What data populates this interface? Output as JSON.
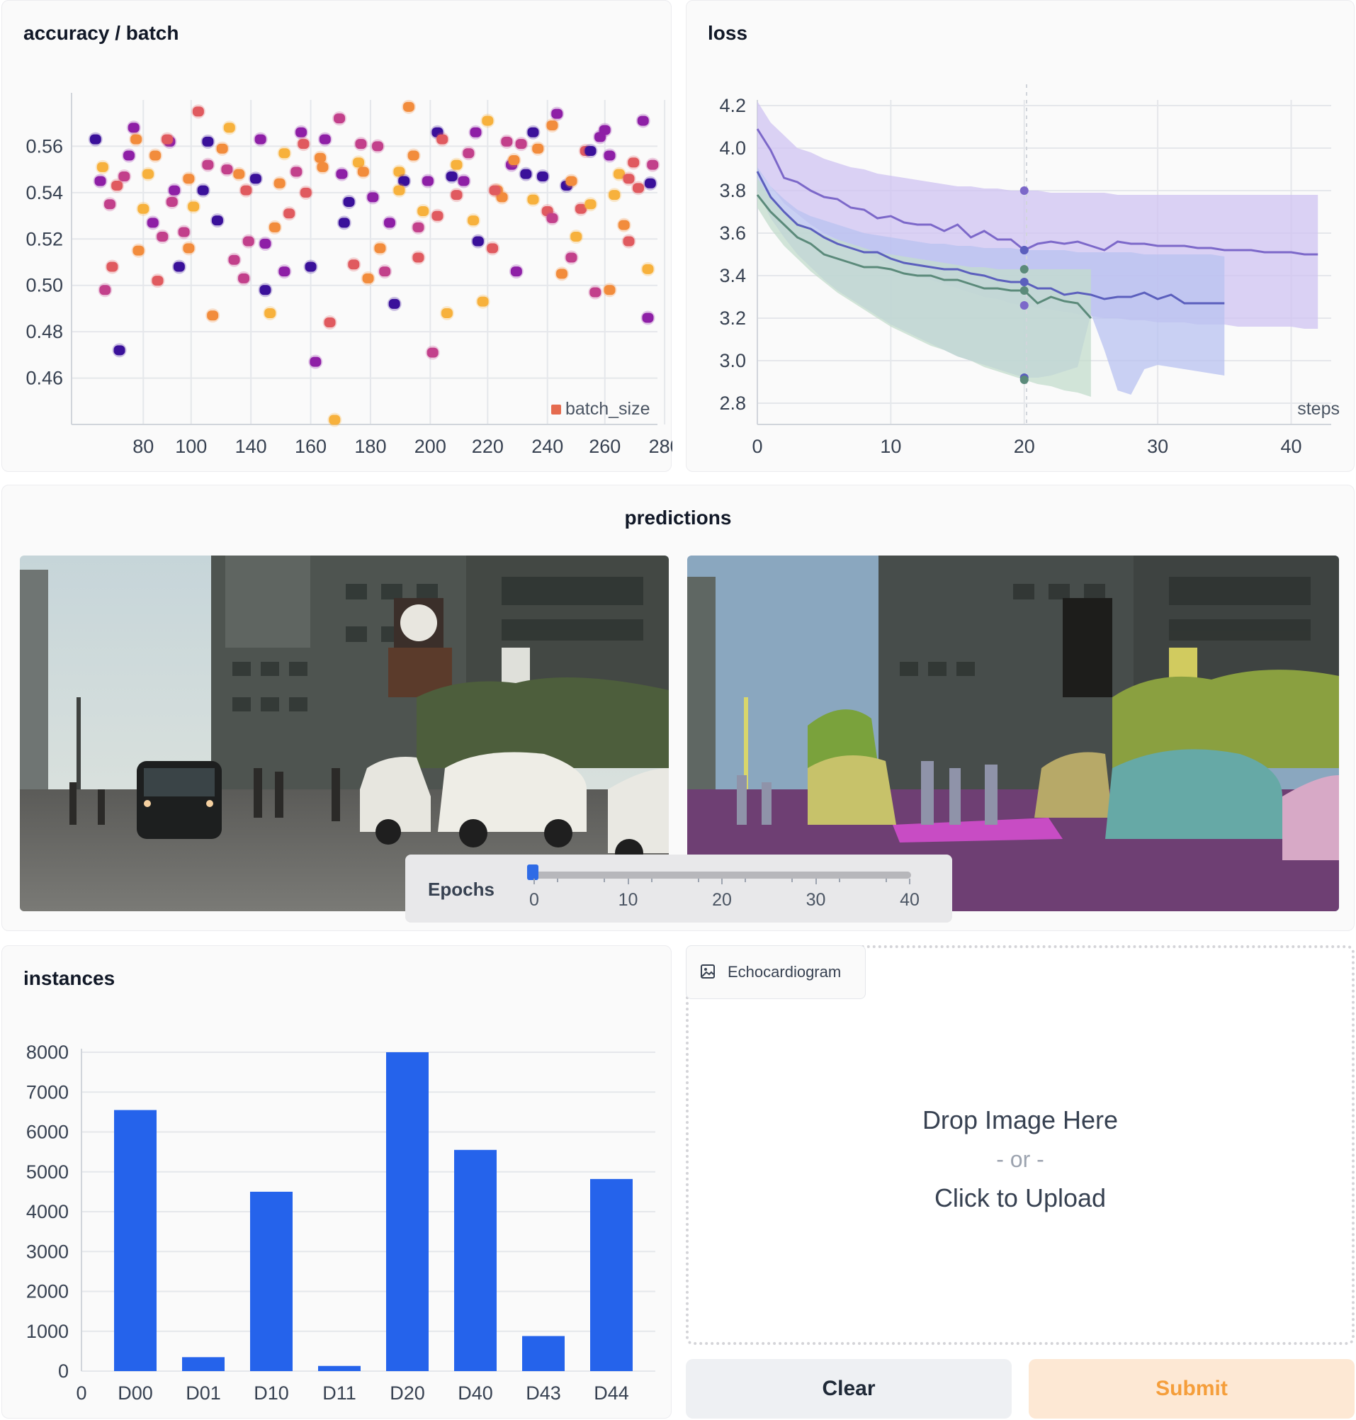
{
  "accuracy_panel": {
    "title": "accuracy / batch",
    "legend_label": "batch_size"
  },
  "loss_panel": {
    "title": "loss",
    "x_label": "steps"
  },
  "predictions_panel": {
    "title": "predictions"
  },
  "slider": {
    "label": "Epochs",
    "ticks": [
      "0",
      "10",
      "20",
      "30",
      "40"
    ],
    "value": 0
  },
  "instances_panel": {
    "title": "instances"
  },
  "upload": {
    "label": "Echocardiogram",
    "drop_text": "Drop Image Here",
    "or_text": "- or -",
    "click_text": "Click to Upload"
  },
  "buttons": {
    "clear_label": "Clear",
    "submit_label": "Submit"
  },
  "chart_data": [
    {
      "type": "scatter",
      "title": "accuracy / batch",
      "legend": [
        "batch_size"
      ],
      "x_ticks": [
        "80",
        "100",
        "140",
        "160",
        "180",
        "200",
        "220",
        "240",
        "260",
        "280"
      ],
      "y_ticks": [
        "0.56",
        "0.54",
        "0.52",
        "0.50",
        "0.48",
        "0.46"
      ],
      "ylim": [
        0.44,
        0.58
      ],
      "grid": true,
      "legend_position": "bottom-right",
      "palette": [
        "#f7b13c",
        "#f28c3c",
        "#e05a5f",
        "#c2408b",
        "#8e1fa6",
        "#3a109a"
      ],
      "points": [
        [
          60,
          0.563
        ],
        [
          63,
          0.551
        ],
        [
          67,
          0.508
        ],
        [
          72,
          0.547
        ],
        [
          76,
          0.568
        ],
        [
          80,
          0.533
        ],
        [
          85,
          0.556
        ],
        [
          88,
          0.521
        ],
        [
          91,
          0.562
        ],
        [
          95,
          0.508
        ],
        [
          99,
          0.546
        ],
        [
          103,
          0.575
        ],
        [
          107,
          0.552
        ],
        [
          111,
          0.528
        ],
        [
          116,
          0.568
        ],
        [
          120,
          0.548
        ],
        [
          124,
          0.519
        ],
        [
          129,
          0.563
        ],
        [
          133,
          0.488
        ],
        [
          137,
          0.544
        ],
        [
          141,
          0.531
        ],
        [
          146,
          0.566
        ],
        [
          150,
          0.508
        ],
        [
          154,
          0.555
        ],
        [
          158,
          0.484
        ],
        [
          162,
          0.572
        ],
        [
          166,
          0.536
        ],
        [
          170,
          0.553
        ],
        [
          174,
          0.503
        ],
        [
          178,
          0.56
        ],
        [
          183,
          0.527
        ],
        [
          187,
          0.549
        ],
        [
          191,
          0.577
        ],
        [
          195,
          0.512
        ],
        [
          199,
          0.545
        ],
        [
          203,
          0.566
        ],
        [
          207,
          0.488
        ],
        [
          211,
          0.539
        ],
        [
          216,
          0.557
        ],
        [
          220,
          0.519
        ],
        [
          224,
          0.571
        ],
        [
          228,
          0.541
        ],
        [
          232,
          0.562
        ],
        [
          236,
          0.506
        ],
        [
          240,
          0.548
        ],
        [
          245,
          0.559
        ],
        [
          249,
          0.532
        ],
        [
          253,
          0.574
        ],
        [
          257,
          0.543
        ],
        [
          261,
          0.521
        ],
        [
          265,
          0.558
        ],
        [
          269,
          0.497
        ],
        [
          273,
          0.567
        ],
        [
          277,
          0.539
        ],
        [
          281,
          0.526
        ],
        [
          285,
          0.553
        ],
        [
          289,
          0.571
        ],
        [
          292,
          0.544
        ],
        [
          64,
          0.498
        ],
        [
          70,
          0.472
        ],
        [
          78,
          0.515
        ],
        [
          86,
          0.502
        ],
        [
          93,
          0.541
        ],
        [
          101,
          0.534
        ],
        [
          109,
          0.487
        ],
        [
          118,
          0.511
        ],
        [
          127,
          0.546
        ],
        [
          135,
          0.525
        ],
        [
          144,
          0.549
        ],
        [
          152,
          0.467
        ],
        [
          160,
          0.442
        ],
        [
          168,
          0.509
        ],
        [
          176,
          0.538
        ],
        [
          185,
          0.492
        ],
        [
          193,
          0.556
        ],
        [
          201,
          0.471
        ],
        [
          209,
          0.547
        ],
        [
          218,
          0.528
        ],
        [
          226,
          0.516
        ],
        [
          234,
          0.552
        ],
        [
          243,
          0.537
        ],
        [
          251,
          0.569
        ],
        [
          259,
          0.512
        ],
        [
          267,
          0.558
        ],
        [
          275,
          0.498
        ],
        [
          283,
          0.519
        ],
        [
          291,
          0.486
        ],
        [
          66,
          0.535
        ],
        [
          74,
          0.556
        ],
        [
          82,
          0.548
        ],
        [
          90,
          0.563
        ],
        [
          97,
          0.523
        ],
        [
          105,
          0.541
        ],
        [
          113,
          0.559
        ],
        [
          122,
          0.503
        ],
        [
          131,
          0.518
        ],
        [
          139,
          0.557
        ],
        [
          148,
          0.54
        ],
        [
          156,
          0.563
        ],
        [
          164,
          0.527
        ],
        [
          172,
          0.549
        ],
        [
          181,
          0.506
        ],
        [
          189,
          0.545
        ],
        [
          197,
          0.532
        ],
        [
          205,
          0.563
        ],
        [
          214,
          0.545
        ],
        [
          222,
          0.493
        ],
        [
          230,
          0.538
        ],
        [
          238,
          0.561
        ],
        [
          247,
          0.547
        ],
        [
          255,
          0.505
        ],
        [
          263,
          0.533
        ],
        [
          271,
          0.564
        ],
        [
          279,
          0.548
        ],
        [
          287,
          0.542
        ],
        [
          293,
          0.552
        ],
        [
          69,
          0.543
        ],
        [
          84,
          0.527
        ],
        [
          99,
          0.516
        ],
        [
          115,
          0.55
        ],
        [
          131,
          0.498
        ],
        [
          147,
          0.561
        ],
        [
          163,
          0.548
        ],
        [
          179,
          0.516
        ],
        [
          195,
          0.525
        ],
        [
          211,
          0.552
        ],
        [
          227,
          0.541
        ],
        [
          243,
          0.566
        ],
        [
          259,
          0.545
        ],
        [
          275,
          0.556
        ],
        [
          291,
          0.507
        ],
        [
          62,
          0.545
        ],
        [
          77,
          0.563
        ],
        [
          92,
          0.536
        ],
        [
          107,
          0.562
        ],
        [
          123,
          0.541
        ],
        [
          139,
          0.506
        ],
        [
          155,
          0.551
        ],
        [
          171,
          0.561
        ],
        [
          187,
          0.541
        ],
        [
          203,
          0.53
        ],
        [
          219,
          0.566
        ],
        [
          235,
          0.554
        ],
        [
          251,
          0.529
        ],
        [
          267,
          0.535
        ],
        [
          283,
          0.546
        ]
      ]
    },
    {
      "type": "line",
      "title": "loss",
      "xlabel": "steps",
      "x_ticks": [
        "0",
        "10",
        "20",
        "30",
        "40"
      ],
      "y_ticks": [
        "4.2",
        "4.0",
        "3.8",
        "3.6",
        "3.4",
        "3.2",
        "3.0",
        "2.8"
      ],
      "xlim": [
        0,
        43
      ],
      "ylim": [
        2.7,
        4.3
      ],
      "grid": true,
      "series": [
        {
          "color": "#7c68c9",
          "band": "#cfc3f2",
          "x": [
            0,
            1,
            2,
            3,
            4,
            5,
            6,
            7,
            8,
            9,
            10,
            11,
            12,
            13,
            14,
            15,
            16,
            17,
            18,
            19,
            20,
            21,
            22,
            23,
            24,
            25,
            26,
            27,
            28,
            29,
            30,
            31,
            32,
            33,
            34,
            35,
            36,
            37,
            38,
            39,
            40,
            41,
            42
          ],
          "y": [
            4.09,
            3.99,
            3.86,
            3.84,
            3.8,
            3.77,
            3.76,
            3.72,
            3.71,
            3.67,
            3.68,
            3.65,
            3.64,
            3.64,
            3.61,
            3.64,
            3.58,
            3.61,
            3.57,
            3.57,
            3.52,
            3.55,
            3.56,
            3.55,
            3.56,
            3.54,
            3.52,
            3.56,
            3.55,
            3.55,
            3.54,
            3.54,
            3.54,
            3.53,
            3.53,
            3.52,
            3.52,
            3.52,
            3.51,
            3.51,
            3.51,
            3.5,
            3.5
          ],
          "upper": [
            4.22,
            4.12,
            4.06,
            4.0,
            3.98,
            3.95,
            3.93,
            3.91,
            3.9,
            3.88,
            3.87,
            3.86,
            3.85,
            3.84,
            3.83,
            3.82,
            3.82,
            3.81,
            3.81,
            3.8,
            3.8,
            3.8,
            3.79,
            3.79,
            3.79,
            3.79,
            3.79,
            3.78,
            3.78,
            3.78,
            3.78,
            3.78,
            3.78,
            3.78,
            3.78,
            3.78,
            3.78,
            3.78,
            3.78,
            3.78,
            3.78,
            3.78,
            3.78
          ],
          "lower": [
            3.9,
            3.82,
            3.74,
            3.69,
            3.64,
            3.6,
            3.57,
            3.54,
            3.51,
            3.48,
            3.45,
            3.42,
            3.4,
            3.38,
            3.36,
            3.34,
            3.32,
            3.3,
            3.29,
            3.27,
            3.26,
            3.25,
            3.24,
            3.23,
            3.22,
            3.21,
            3.2,
            3.2,
            3.19,
            3.19,
            3.18,
            3.18,
            3.18,
            3.17,
            3.17,
            3.17,
            3.16,
            3.16,
            3.16,
            3.16,
            3.16,
            3.15,
            3.15
          ]
        },
        {
          "color": "#5b5fbd",
          "band": "#b8c2f0",
          "x": [
            0,
            1,
            2,
            3,
            4,
            5,
            6,
            7,
            8,
            9,
            10,
            11,
            12,
            13,
            14,
            15,
            16,
            17,
            18,
            19,
            20,
            21,
            22,
            23,
            24,
            25,
            26,
            27,
            28,
            29,
            30,
            31,
            32,
            33,
            34,
            35
          ],
          "y": [
            3.89,
            3.77,
            3.7,
            3.64,
            3.62,
            3.58,
            3.55,
            3.53,
            3.51,
            3.51,
            3.48,
            3.46,
            3.45,
            3.44,
            3.43,
            3.43,
            3.41,
            3.4,
            3.38,
            3.37,
            3.37,
            3.34,
            3.34,
            3.31,
            3.32,
            3.31,
            3.29,
            3.3,
            3.3,
            3.32,
            3.29,
            3.31,
            3.27,
            3.27,
            3.27,
            3.27
          ],
          "upper": [
            3.91,
            3.82,
            3.76,
            3.71,
            3.68,
            3.66,
            3.64,
            3.62,
            3.6,
            3.59,
            3.58,
            3.57,
            3.56,
            3.55,
            3.55,
            3.54,
            3.54,
            3.53,
            3.53,
            3.53,
            3.52,
            3.52,
            3.52,
            3.52,
            3.51,
            3.51,
            3.51,
            3.51,
            3.51,
            3.5,
            3.5,
            3.5,
            3.5,
            3.5,
            3.5,
            3.49
          ],
          "lower": [
            3.8,
            3.67,
            3.58,
            3.5,
            3.44,
            3.38,
            3.33,
            3.29,
            3.25,
            3.21,
            3.17,
            3.14,
            3.11,
            3.08,
            3.05,
            3.02,
            3.0,
            2.98,
            2.96,
            2.94,
            2.92,
            2.92,
            2.93,
            2.95,
            2.97,
            3.22,
            3.05,
            2.86,
            2.84,
            2.96,
            2.98,
            2.97,
            2.96,
            2.95,
            2.94,
            2.93
          ]
        },
        {
          "color": "#5b8a7a",
          "band": "#c3dccc",
          "x": [
            0,
            1,
            2,
            3,
            4,
            5,
            6,
            7,
            8,
            9,
            10,
            11,
            12,
            13,
            14,
            15,
            16,
            17,
            18,
            19,
            20,
            21,
            22,
            23,
            24,
            25
          ],
          "y": [
            3.78,
            3.7,
            3.64,
            3.58,
            3.55,
            3.5,
            3.48,
            3.46,
            3.44,
            3.44,
            3.43,
            3.41,
            3.4,
            3.4,
            3.38,
            3.38,
            3.36,
            3.34,
            3.34,
            3.33,
            3.33,
            3.27,
            3.3,
            3.28,
            3.27,
            3.2
          ],
          "upper": [
            3.86,
            3.76,
            3.7,
            3.65,
            3.62,
            3.59,
            3.57,
            3.55,
            3.53,
            3.51,
            3.5,
            3.49,
            3.48,
            3.47,
            3.46,
            3.45,
            3.44,
            3.44,
            3.43,
            3.43,
            3.43,
            3.43,
            3.43,
            3.43,
            3.43,
            3.43
          ],
          "lower": [
            3.72,
            3.62,
            3.54,
            3.48,
            3.42,
            3.37,
            3.32,
            3.28,
            3.24,
            3.2,
            3.16,
            3.13,
            3.1,
            3.07,
            3.05,
            3.02,
            3.0,
            2.97,
            2.95,
            2.93,
            2.91,
            2.89,
            2.88,
            2.86,
            2.85,
            2.83
          ]
        }
      ]
    },
    {
      "type": "bar",
      "title": "instances",
      "x_ticks": [
        "0",
        "D00",
        "D01",
        "D10",
        "D11",
        "D20",
        "D40",
        "D43",
        "D44"
      ],
      "categories": [
        "D00",
        "D01",
        "D10",
        "D11",
        "D20",
        "D40",
        "D43",
        "D44"
      ],
      "values": [
        6550,
        350,
        4500,
        130,
        8000,
        5550,
        880,
        4820
      ],
      "y_ticks": [
        "8000",
        "7000",
        "6000",
        "5000",
        "4000",
        "3000",
        "2000",
        "1000",
        "0"
      ],
      "ylim": [
        0,
        8000
      ],
      "grid": true,
      "bar_color": "#2563eb"
    }
  ]
}
